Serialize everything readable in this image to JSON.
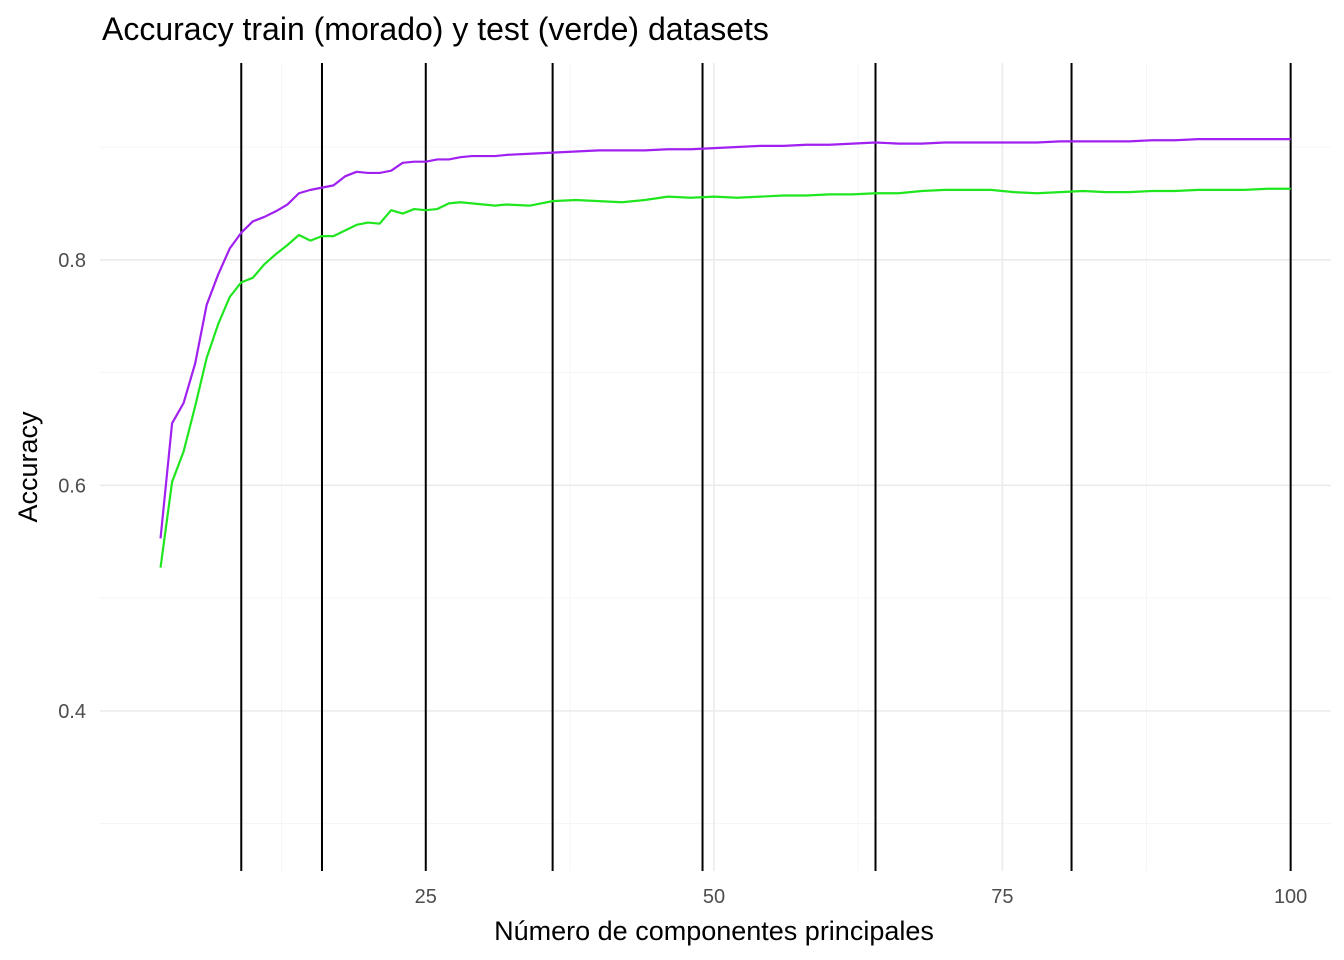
{
  "chart_data": {
    "type": "line",
    "title": "Accuracy train (morado) y test (verde) datasets",
    "xlabel": "Número de componentes principales",
    "ylabel": "Accuracy",
    "xlim": [
      -3.25,
      103.5
    ],
    "ylim": [
      0.258,
      0.9745
    ],
    "x_ticks": [
      {
        "value": 25,
        "label": "25"
      },
      {
        "value": 50,
        "label": "50"
      },
      {
        "value": 75,
        "label": "75"
      },
      {
        "value": 100,
        "label": "100"
      }
    ],
    "y_ticks": [
      {
        "value": 0.4,
        "label": "0.4"
      },
      {
        "value": 0.6,
        "label": "0.6"
      },
      {
        "value": 0.8,
        "label": "0.8"
      }
    ],
    "grid": true,
    "vlines": [
      9,
      16,
      25,
      36,
      49,
      64,
      81,
      100
    ],
    "series": [
      {
        "color": "#a020f0",
        "x": [
          2,
          3,
          4,
          5,
          6,
          7,
          8,
          9,
          10,
          11,
          12,
          13,
          14,
          15,
          16,
          17,
          18,
          19,
          20,
          21,
          22,
          23,
          24,
          25,
          26,
          27,
          28,
          29,
          30,
          31,
          32,
          34,
          36,
          38,
          40,
          42,
          44,
          46,
          48,
          50,
          52,
          54,
          56,
          58,
          60,
          62,
          64,
          66,
          68,
          70,
          72,
          74,
          76,
          78,
          80,
          82,
          84,
          86,
          88,
          90,
          92,
          94,
          96,
          98,
          100
        ],
        "y": [
          0.553,
          0.655,
          0.673,
          0.708,
          0.76,
          0.787,
          0.81,
          0.824,
          0.834,
          0.838,
          0.843,
          0.849,
          0.859,
          0.862,
          0.864,
          0.866,
          0.874,
          0.878,
          0.877,
          0.877,
          0.879,
          0.886,
          0.887,
          0.887,
          0.889,
          0.889,
          0.891,
          0.892,
          0.892,
          0.892,
          0.893,
          0.894,
          0.895,
          0.896,
          0.897,
          0.897,
          0.897,
          0.898,
          0.898,
          0.899,
          0.9,
          0.901,
          0.901,
          0.902,
          0.902,
          0.903,
          0.904,
          0.903,
          0.903,
          0.904,
          0.904,
          0.904,
          0.904,
          0.904,
          0.905,
          0.905,
          0.905,
          0.905,
          0.906,
          0.906,
          0.907,
          0.907,
          0.907,
          0.907,
          0.907
        ]
      },
      {
        "color": "#1fe61f",
        "x": [
          2,
          3,
          4,
          5,
          6,
          7,
          8,
          9,
          10,
          11,
          12,
          13,
          14,
          15,
          16,
          17,
          18,
          19,
          20,
          21,
          22,
          23,
          24,
          25,
          26,
          27,
          28,
          29,
          30,
          31,
          32,
          34,
          36,
          38,
          40,
          42,
          44,
          46,
          48,
          50,
          52,
          54,
          56,
          58,
          60,
          62,
          64,
          66,
          68,
          70,
          72,
          74,
          76,
          78,
          80,
          82,
          84,
          86,
          88,
          90,
          92,
          94,
          96,
          98,
          100
        ],
        "y": [
          0.527,
          0.603,
          0.63,
          0.67,
          0.713,
          0.743,
          0.767,
          0.78,
          0.784,
          0.796,
          0.805,
          0.813,
          0.822,
          0.817,
          0.821,
          0.821,
          0.826,
          0.831,
          0.833,
          0.832,
          0.844,
          0.841,
          0.845,
          0.844,
          0.845,
          0.85,
          0.851,
          0.85,
          0.849,
          0.848,
          0.849,
          0.848,
          0.852,
          0.853,
          0.852,
          0.851,
          0.853,
          0.856,
          0.855,
          0.856,
          0.855,
          0.856,
          0.857,
          0.857,
          0.858,
          0.858,
          0.859,
          0.859,
          0.861,
          0.862,
          0.862,
          0.862,
          0.86,
          0.859,
          0.86,
          0.861,
          0.86,
          0.86,
          0.861,
          0.861,
          0.862,
          0.862,
          0.862,
          0.863,
          0.863
        ]
      }
    ]
  }
}
